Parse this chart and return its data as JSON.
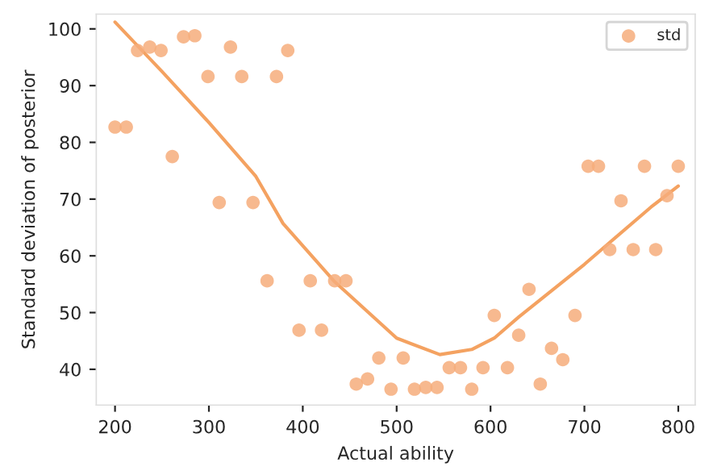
{
  "chart_data": {
    "type": "scatter",
    "xlabel": "Actual ability",
    "xlim": [
      180,
      818
    ],
    "ylim": [
      33.7,
      102.6
    ],
    "ylabel": "Standard deviation of posterior",
    "xticks": [
      200,
      300,
      400,
      500,
      600,
      700,
      800
    ],
    "yticks": [
      40,
      50,
      60,
      70,
      80,
      90,
      100
    ],
    "legend": "top right",
    "grid": false,
    "series": [
      {
        "name": "std",
        "marker": "circle",
        "color": "#f6ad7b",
        "x": [
          200,
          212,
          224,
          237,
          249,
          261,
          273,
          285,
          299,
          311,
          323,
          335,
          347,
          362,
          372,
          384,
          396,
          408,
          420,
          434,
          446,
          457,
          469,
          481,
          494,
          507,
          519,
          531,
          543,
          556,
          568,
          580,
          592,
          604,
          618,
          630,
          641,
          653,
          665,
          677,
          690,
          704,
          715,
          727,
          739,
          752,
          764,
          776,
          788,
          800
        ],
        "values": [
          82.7,
          82.7,
          96.2,
          96.8,
          96.2,
          77.5,
          98.6,
          98.8,
          91.6,
          69.4,
          96.8,
          91.6,
          69.4,
          55.6,
          91.6,
          96.2,
          46.9,
          55.6,
          46.9,
          55.6,
          55.6,
          37.4,
          38.3,
          42.0,
          36.5,
          42.0,
          36.5,
          36.8,
          36.8,
          40.3,
          40.3,
          36.5,
          40.3,
          49.5,
          40.3,
          46.0,
          54.1,
          37.4,
          43.7,
          41.7,
          49.5,
          75.8,
          75.8,
          61.1,
          69.7,
          61.1,
          75.8,
          61.1,
          70.6,
          75.8
        ]
      },
      {
        "type": "line",
        "marker": "none",
        "color": "#f4a261",
        "x": [
          200,
          250,
          300,
          350,
          379,
          433,
          500,
          546,
          580,
          604,
          630,
          700,
          771,
          800
        ],
        "values": [
          101.2,
          92.5,
          83.5,
          74.0,
          65.7,
          55.6,
          45.5,
          42.6,
          43.5,
          45.5,
          49.2,
          58.5,
          68.6,
          72.3
        ]
      }
    ]
  }
}
